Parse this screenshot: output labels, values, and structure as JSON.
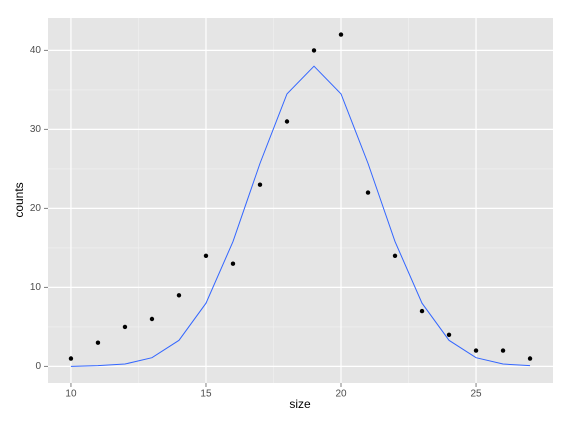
{
  "chart_data": {
    "type": "scatter",
    "x_label": "size",
    "y_label": "counts",
    "series": [
      {
        "type": "scatter",
        "color": "#000000",
        "x": [
          10,
          11,
          12,
          13,
          14,
          15,
          16,
          17,
          18,
          19,
          20,
          21,
          22,
          23,
          24,
          25,
          26,
          27
        ],
        "values": [
          1,
          3,
          5,
          6,
          9,
          14,
          13,
          23,
          31,
          40,
          42,
          22,
          14,
          7,
          4,
          2,
          2,
          1
        ]
      },
      {
        "type": "line",
        "color": "#3366FF",
        "x": [
          10,
          11,
          12,
          13,
          14,
          15,
          16,
          17,
          18,
          19,
          20,
          21,
          22,
          23,
          24,
          25,
          26,
          27
        ],
        "values": [
          0.0,
          0.1,
          0.3,
          1.1,
          3.3,
          8.0,
          15.8,
          25.7,
          34.5,
          38.0,
          34.5,
          25.7,
          15.8,
          8.0,
          3.3,
          1.1,
          0.3,
          0.1
        ]
      }
    ],
    "xlim": [
      9.15,
      27.85
    ],
    "ylim": [
      -2.1,
      44.1
    ],
    "xticks": [
      10,
      15,
      20,
      25
    ],
    "yticks": [
      0,
      10,
      20,
      30,
      40
    ],
    "xminor_ticks": [
      12.5,
      17.5,
      22.5
    ],
    "yminor_ticks": [
      5,
      15,
      25,
      35
    ],
    "grid": true,
    "background": "#E5E5E5"
  }
}
